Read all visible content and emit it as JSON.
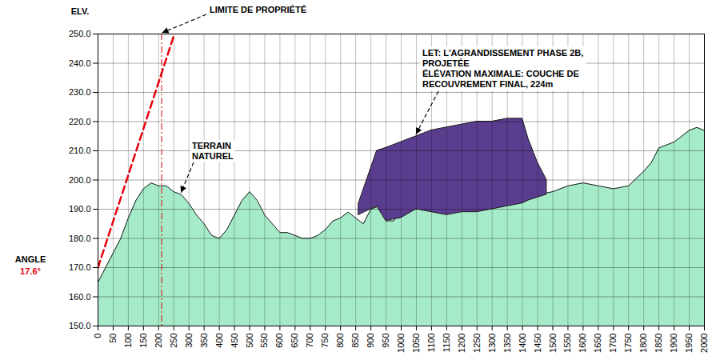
{
  "chart_data": {
    "type": "area",
    "y_label": "ELV.",
    "xlim": [
      0,
      2000
    ],
    "ylim": [
      150,
      250
    ],
    "xticks": [
      0,
      50,
      100,
      150,
      200,
      250,
      300,
      350,
      400,
      450,
      500,
      550,
      600,
      650,
      700,
      750,
      800,
      850,
      900,
      950,
      1000,
      1050,
      1100,
      1150,
      1200,
      1250,
      1300,
      1350,
      1400,
      1450,
      1500,
      1550,
      1600,
      1650,
      1700,
      1750,
      1800,
      1850,
      1900,
      1950,
      2000
    ],
    "yticks": [
      {
        "value": 150,
        "label": "150.0"
      },
      {
        "value": 160,
        "label": "160.0"
      },
      {
        "value": 170,
        "label": "170.0"
      },
      {
        "value": 180,
        "label": "180.0"
      },
      {
        "value": 190,
        "label": "190.0"
      },
      {
        "value": 200,
        "label": "200.0"
      },
      {
        "value": 210,
        "label": "210.0"
      },
      {
        "value": 220,
        "label": "220.0"
      },
      {
        "value": 230,
        "label": "230.0"
      },
      {
        "value": 240,
        "label": "240.0"
      },
      {
        "value": 250,
        "label": "250.0"
      }
    ],
    "grid": true,
    "series": [
      {
        "name": "TERRAIN\nNATUREL",
        "type": "area",
        "color": "#a6ebc9",
        "x": [
          0,
          25,
          50,
          75,
          100,
          125,
          150,
          175,
          200,
          225,
          250,
          275,
          300,
          325,
          350,
          375,
          400,
          425,
          450,
          475,
          500,
          525,
          550,
          575,
          600,
          625,
          650,
          675,
          700,
          725,
          750,
          775,
          800,
          825,
          850,
          875,
          900,
          925,
          950,
          975,
          1000,
          1050,
          1100,
          1150,
          1200,
          1250,
          1300,
          1350,
          1400,
          1450,
          1500,
          1550,
          1600,
          1650,
          1700,
          1750,
          1800,
          1825,
          1850,
          1900,
          1950,
          1975,
          2000
        ],
        "values": [
          165,
          170,
          175,
          180,
          187,
          193,
          197,
          199,
          198,
          198,
          196,
          195,
          192,
          188,
          185,
          181,
          180,
          183,
          188,
          193,
          196,
          193,
          188,
          185,
          182,
          182,
          181,
          180,
          180,
          181,
          183,
          186,
          187,
          189,
          187,
          185,
          190,
          191,
          186,
          186,
          190,
          190,
          190,
          190,
          190,
          190,
          191,
          192,
          193,
          195,
          196,
          198,
          199,
          198,
          197,
          198,
          203,
          206,
          211,
          213,
          217,
          218,
          217
        ]
      },
      {
        "name": "LET: L'AGRANDISSEMENT PHASE 2B,\nPROJETÉE\nÉLÉVATION MAXIMALE: COUCHE DE\nRECOUVREMENT FINAL, 224m",
        "type": "area",
        "color": "#5b3d8f",
        "x": [
          860,
          900,
          920,
          950,
          1000,
          1050,
          1100,
          1150,
          1200,
          1250,
          1300,
          1350,
          1400,
          1420,
          1450,
          1480
        ],
        "low": [
          188,
          190,
          191,
          186,
          187,
          190,
          189,
          188,
          189,
          189,
          190,
          191,
          192,
          193,
          194,
          195
        ],
        "values": [
          192,
          204,
          210,
          211,
          213,
          215,
          217,
          218,
          219,
          220,
          220,
          221,
          221,
          214,
          206,
          200
        ]
      },
      {
        "type": "line",
        "color": "#e8000b",
        "line_style": "dashed",
        "x": [
          0,
          252
        ],
        "values": [
          170,
          250
        ]
      }
    ],
    "rules": [
      {
        "x": 210,
        "label": "LIMITE DE PROPRIÉTÉ",
        "color": "#d40000",
        "line_style": "dashdot"
      }
    ],
    "annotations": [
      {
        "text": "ANGLE"
      },
      {
        "text": "17.6°",
        "color": "#e8000b"
      }
    ]
  }
}
